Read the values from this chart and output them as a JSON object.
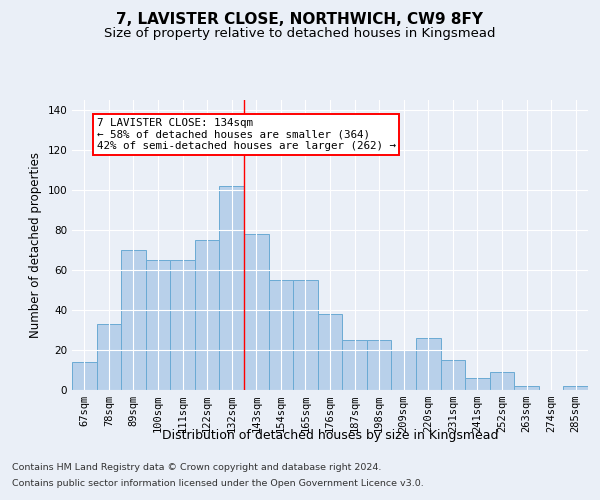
{
  "title": "7, LAVISTER CLOSE, NORTHWICH, CW9 8FY",
  "subtitle": "Size of property relative to detached houses in Kingsmead",
  "xlabel": "Distribution of detached houses by size in Kingsmead",
  "ylabel": "Number of detached properties",
  "footer1": "Contains HM Land Registry data © Crown copyright and database right 2024.",
  "footer2": "Contains public sector information licensed under the Open Government Licence v3.0.",
  "categories": [
    "67sqm",
    "78sqm",
    "89sqm",
    "100sqm",
    "111sqm",
    "122sqm",
    "132sqm",
    "143sqm",
    "154sqm",
    "165sqm",
    "176sqm",
    "187sqm",
    "198sqm",
    "209sqm",
    "220sqm",
    "231sqm",
    "241sqm",
    "252sqm",
    "263sqm",
    "274sqm",
    "285sqm"
  ],
  "values": [
    14,
    33,
    70,
    65,
    65,
    75,
    102,
    78,
    55,
    55,
    38,
    25,
    25,
    20,
    26,
    15,
    6,
    9,
    2,
    0,
    2
  ],
  "bar_color": "#b8d0ea",
  "bar_edge_color": "#6aaad4",
  "vline_x_index": 6,
  "annotation_line1": "7 LAVISTER CLOSE: 134sqm",
  "annotation_line2": "← 58% of detached houses are smaller (364)",
  "annotation_line3": "42% of semi-detached houses are larger (262) →",
  "annotation_box_color": "white",
  "annotation_box_edge_color": "red",
  "vline_color": "red",
  "ylim": [
    0,
    145
  ],
  "yticks": [
    0,
    20,
    40,
    60,
    80,
    100,
    120,
    140
  ],
  "bg_color": "#eaeff7",
  "grid_color": "white",
  "title_fontsize": 11,
  "subtitle_fontsize": 9.5,
  "ylabel_fontsize": 8.5,
  "xlabel_fontsize": 9,
  "tick_fontsize": 7.5,
  "annotation_fontsize": 7.8,
  "footer_fontsize": 6.8
}
